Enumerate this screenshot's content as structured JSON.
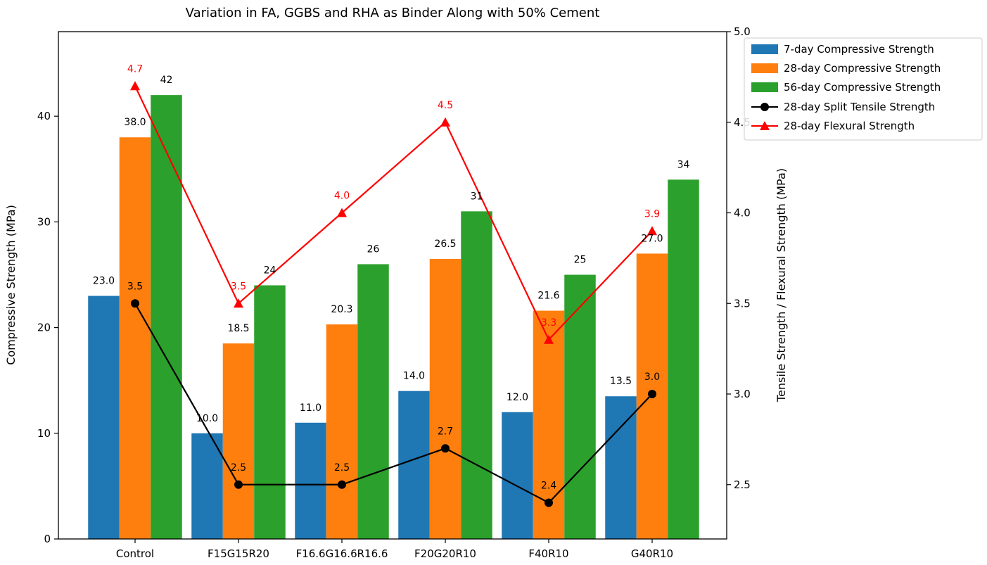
{
  "chart_data": {
    "type": "bar",
    "title": "Variation in FA, GGBS and RHA as Binder Along with 50% Cement",
    "categories": [
      "Control",
      "F15G15R20",
      "F16.6G16.6R16.6",
      "F20G20R10",
      "F40R10",
      "G40R10"
    ],
    "ylabel": "Compressive Strength (MPa)",
    "y2label": "Tensile Strength / Flexural Strength (MPa)",
    "ylim": [
      0,
      48
    ],
    "y2lim": [
      2.2,
      5.0
    ],
    "yticks": [
      "0",
      "10",
      "20",
      "30",
      "40"
    ],
    "y2ticks": [
      "2.5",
      "3.0",
      "3.5",
      "4.0",
      "4.5",
      "5.0"
    ],
    "grid": false,
    "legend_position": "top-right outside",
    "bar_series": [
      {
        "name": "7-day Compressive Strength",
        "color": "#1f77b4",
        "values": [
          23.0,
          10.0,
          11.0,
          14.0,
          12.0,
          13.5
        ],
        "labels": [
          "23.0",
          "10.0",
          "11.0",
          "14.0",
          "12.0",
          "13.5"
        ]
      },
      {
        "name": "28-day Compressive Strength",
        "color": "#ff7f0e",
        "values": [
          38.0,
          18.5,
          20.3,
          26.5,
          21.6,
          27.0
        ],
        "labels": [
          "38.0",
          "18.5",
          "20.3",
          "26.5",
          "21.6",
          "27.0"
        ]
      },
      {
        "name": "56-day Compressive Strength",
        "color": "#2ca02c",
        "values": [
          42,
          24,
          26,
          31,
          25,
          34
        ],
        "labels": [
          "42",
          "24",
          "26",
          "31",
          "25",
          "34"
        ]
      }
    ],
    "line_series": [
      {
        "name": "28-day Split Tensile Strength",
        "color": "#000000",
        "marker": "circle",
        "axis": "right",
        "values": [
          3.5,
          2.5,
          2.5,
          2.7,
          2.4,
          3.0
        ],
        "labels": [
          "3.5",
          "2.5",
          "2.5",
          "2.7",
          "2.4",
          "3.0"
        ]
      },
      {
        "name": "28-day Flexural Strength",
        "color": "#ff0000",
        "marker": "triangle",
        "axis": "right",
        "values": [
          4.7,
          3.5,
          4.0,
          4.5,
          3.3,
          3.9
        ],
        "labels": [
          "4.7",
          "3.5",
          "4.0",
          "4.5",
          "3.3",
          "3.9"
        ]
      }
    ]
  }
}
